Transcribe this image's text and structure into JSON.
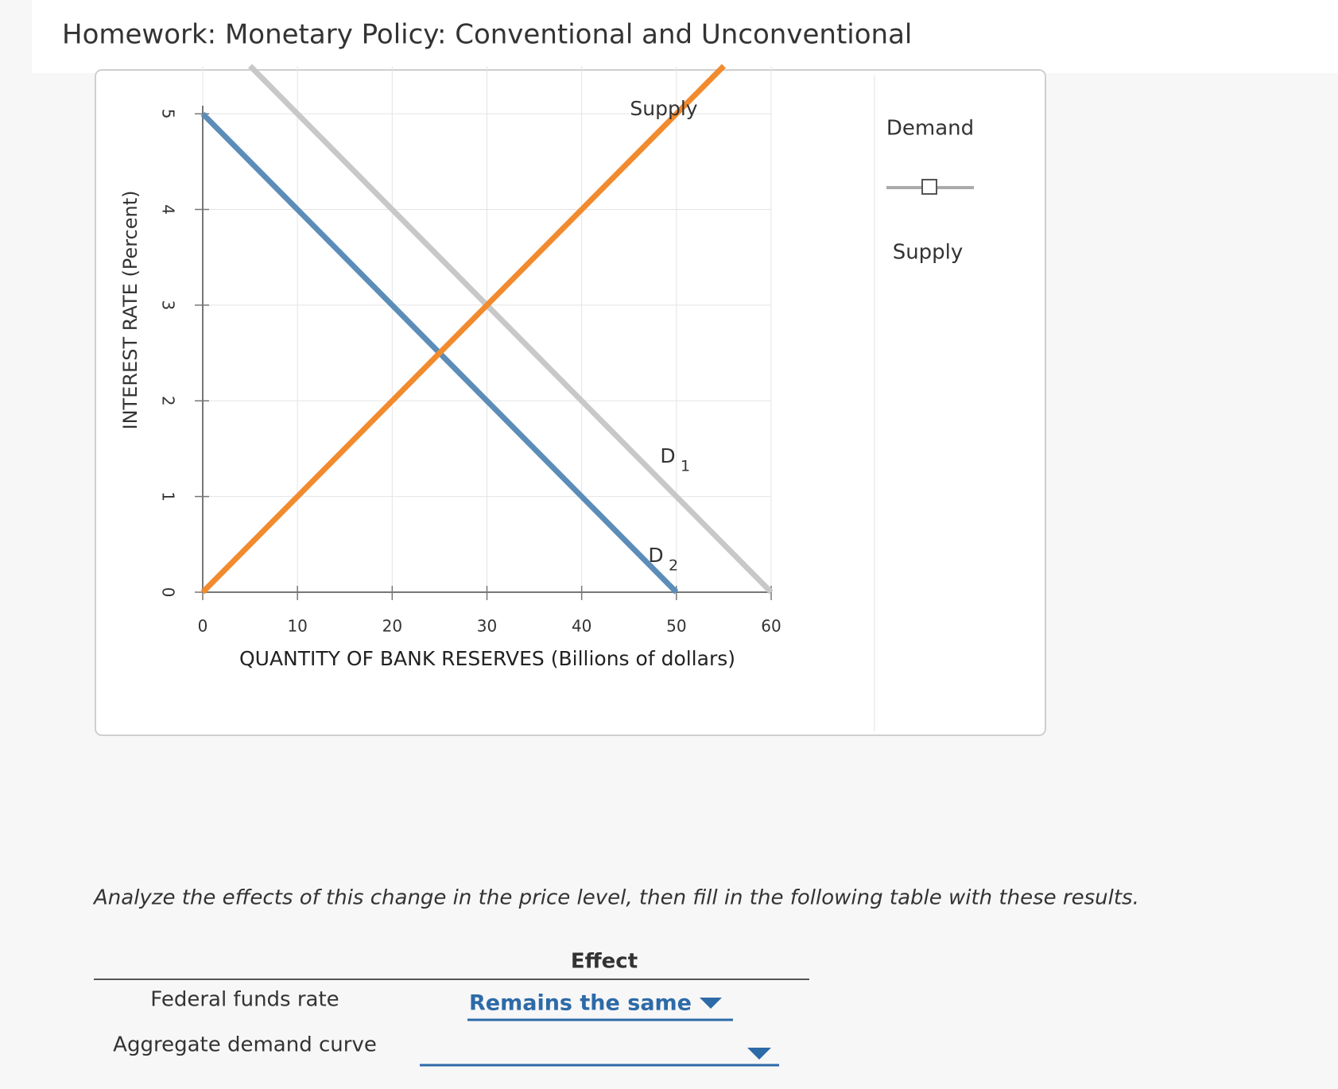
{
  "header": {
    "title": "Homework: Monetary Policy: Conventional and Unconventional"
  },
  "chart_data": {
    "type": "line",
    "x_label": "QUANTITY OF BANK RESERVES (Billions of dollars)",
    "y_label": "INTEREST RATE (Percent)",
    "xlim": [
      0,
      60
    ],
    "ylim": [
      0,
      5.5
    ],
    "xticks": [
      0,
      10,
      20,
      30,
      40,
      50,
      60
    ],
    "yticks": [
      0,
      1,
      2,
      3,
      4,
      5
    ],
    "grid": true,
    "series": [
      {
        "label": "D",
        "label_sub": "1",
        "color": "#c8c8c8",
        "x": [
          5,
          60
        ],
        "values": [
          5.5,
          0
        ]
      },
      {
        "label": "D",
        "label_sub": "2",
        "color": "#5b8db8",
        "x": [
          0,
          50
        ],
        "values": [
          5,
          0
        ]
      },
      {
        "label": "Supply",
        "color": "#f28a2e",
        "x": [
          0,
          55
        ],
        "values": [
          0,
          5.5
        ]
      }
    ]
  },
  "palette": {
    "items": [
      "Demand",
      "Supply"
    ]
  },
  "instruction": "Analyze the effects of this change in the price level, then fill in the following table with these results.",
  "table": {
    "header": "Effect",
    "rows": [
      [
        "Federal funds rate",
        "Remains the same"
      ],
      [
        "Aggregate demand curve"
      ]
    ]
  }
}
